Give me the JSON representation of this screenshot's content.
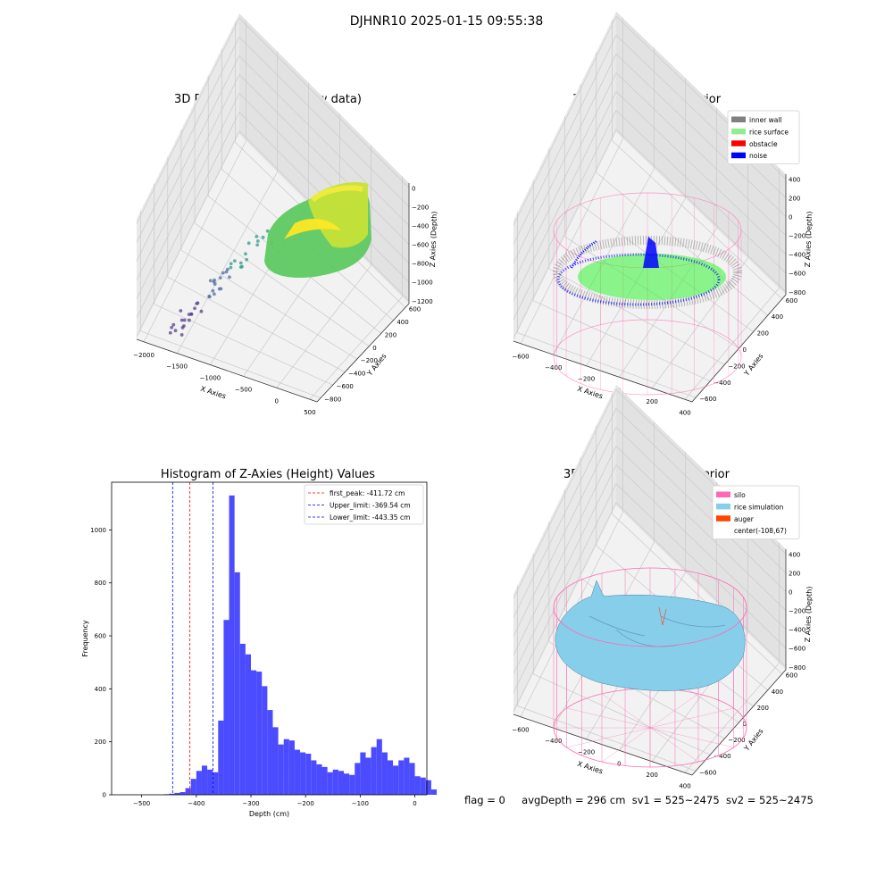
{
  "figure_title": "DJHNR10 2025-01-15 09:55:38",
  "colors": {
    "inner_wall": "#808080",
    "rice_surface": "#90ee90",
    "obstacle": "#ff0000",
    "noise": "#0000ff",
    "silo": "#ff69b4",
    "rice_simulation": "#87ceeb",
    "auger": "#ff4500",
    "histogram": "#4b4bff"
  },
  "footer": {
    "flag": "flag = 0",
    "avg_depth": "avgDepth = 296 cm",
    "sv1": "sv1 = 525~2475",
    "sv2": "sv2 = 525~2475"
  },
  "chart_data": [
    {
      "type": "scatter",
      "title": "3D Plot of Silo Interior(row data)",
      "xlabel": "X Axies",
      "ylabel": "Y Axies",
      "zlabel": "Z Axies (Depth)",
      "x_ticks": [
        "−2000",
        "−1500",
        "−1000",
        "−500",
        "0",
        "500"
      ],
      "y_ticks": [
        "−800",
        "−600",
        "−400",
        "−200",
        "0",
        "200",
        "400",
        "600"
      ],
      "z_ticks": [
        "0",
        "−200",
        "−400",
        "−600",
        "−800",
        "−1000",
        "−1200"
      ],
      "grid": true
    },
    {
      "type": "scatter",
      "title": "3D classify of Silo Interior",
      "xlabel": "X Axies",
      "ylabel": "Y Axies",
      "zlabel": "Z Axies (Depth)",
      "x_ticks": [
        "−600",
        "−400",
        "−200",
        "0",
        "200",
        "400"
      ],
      "y_ticks": [
        "−600",
        "−400",
        "−200",
        "0",
        "200",
        "400",
        "600"
      ],
      "z_ticks": [
        "400",
        "200",
        "0",
        "−200",
        "−400",
        "−600",
        "−800"
      ],
      "legend": [
        "inner wall",
        "rice surface",
        "obstacle",
        "noise"
      ],
      "legend_position": "top-right",
      "grid": true
    },
    {
      "type": "bar",
      "title": "Histogram of Z-Axies (Height) Values",
      "xlabel": "Depth (cm)",
      "ylabel": "Frequency",
      "xlim": [
        -555,
        22
      ],
      "ylim": [
        0,
        1180
      ],
      "x_ticks": [
        "−500",
        "−400",
        "−300",
        "−200",
        "−100",
        "0"
      ],
      "y_ticks": [
        "0",
        "200",
        "400",
        "600",
        "800",
        "1000"
      ],
      "bin_start": -460,
      "bin_width": 10,
      "values": [
        2,
        4,
        7,
        10,
        25,
        60,
        90,
        110,
        95,
        85,
        280,
        660,
        1130,
        840,
        570,
        530,
        470,
        465,
        410,
        320,
        255,
        190,
        210,
        205,
        170,
        160,
        155,
        130,
        115,
        105,
        85,
        95,
        90,
        80,
        75,
        120,
        160,
        140,
        180,
        210,
        160,
        130,
        110,
        130,
        140,
        120,
        70,
        65,
        55,
        20
      ],
      "lines": [
        {
          "name": "first_peak: -411.72 cm",
          "x": -411.72,
          "color": "#ff0000"
        },
        {
          "name": "Upper_limit: -369.54 cm",
          "x": -369.54,
          "color": "#0000ff"
        },
        {
          "name": "Lower_limit: -443.35 cm",
          "x": -443.35,
          "color": "#0000ff"
        }
      ],
      "legend_position": "top-right",
      "grid": false
    },
    {
      "type": "area",
      "title": "3D simulation of Silo Interior",
      "xlabel": "X Axies",
      "ylabel": "Y Axies",
      "zlabel": "Z Axies (Depth)",
      "x_ticks": [
        "−600",
        "−400",
        "−200",
        "0",
        "200",
        "400"
      ],
      "y_ticks": [
        "−600",
        "−400",
        "−200",
        "0",
        "200",
        "400",
        "600"
      ],
      "z_ticks": [
        "400",
        "200",
        "0",
        "−200",
        "−400",
        "−600",
        "−800"
      ],
      "legend": [
        "silo",
        "rice simulation",
        "auger",
        "center(-108,67)"
      ],
      "legend_position": "top-right",
      "grid": true
    }
  ]
}
